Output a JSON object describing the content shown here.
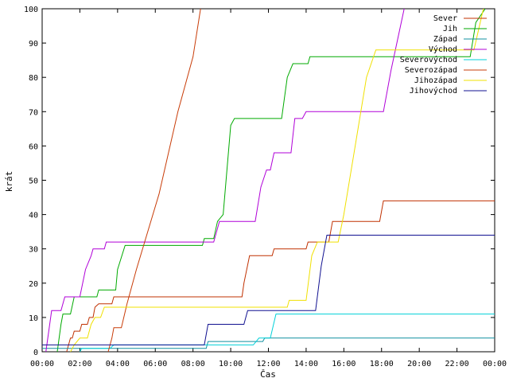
{
  "chart_data": {
    "type": "line",
    "xlabel": "Čas",
    "ylabel": "krát",
    "xlim": [
      0,
      24
    ],
    "ylim": [
      0,
      100
    ],
    "x_ticks": [
      0,
      2,
      4,
      6,
      8,
      10,
      12,
      14,
      16,
      18,
      20,
      22,
      24
    ],
    "x_tick_labels": [
      "00:00",
      "02:00",
      "04:00",
      "06:00",
      "08:00",
      "10:00",
      "12:00",
      "14:00",
      "16:00",
      "18:00",
      "20:00",
      "22:00",
      "00:00"
    ],
    "y_ticks": [
      0,
      10,
      20,
      30,
      40,
      50,
      60,
      70,
      80,
      90,
      100
    ],
    "y_tick_labels": [
      "0",
      "10",
      "20",
      "30",
      "40",
      "50",
      "60",
      "70",
      "80",
      "90",
      "100"
    ],
    "grid": false,
    "step": true,
    "legend_position": "top-right",
    "series": [
      {
        "name": "Sever",
        "color": "#c03000",
        "points": [
          [
            1.3,
            0
          ],
          [
            1.5,
            4
          ],
          [
            1.6,
            4
          ],
          [
            1.7,
            6
          ],
          [
            2.0,
            6
          ],
          [
            2.1,
            8
          ],
          [
            2.4,
            8
          ],
          [
            2.5,
            10
          ],
          [
            2.7,
            10
          ],
          [
            2.8,
            13
          ],
          [
            3.0,
            14
          ],
          [
            3.7,
            14
          ],
          [
            3.8,
            16
          ],
          [
            10.6,
            16
          ],
          [
            10.7,
            20
          ],
          [
            11.0,
            28
          ],
          [
            12.2,
            28
          ],
          [
            12.3,
            30
          ],
          [
            14.0,
            30
          ],
          [
            14.1,
            32
          ],
          [
            15.2,
            32
          ],
          [
            15.4,
            38
          ],
          [
            17.9,
            38
          ],
          [
            18.1,
            44
          ],
          [
            24,
            44
          ]
        ]
      },
      {
        "name": "Jih",
        "color": "#00aa00",
        "points": [
          [
            0.8,
            0
          ],
          [
            1.0,
            8
          ],
          [
            1.1,
            11
          ],
          [
            1.5,
            11
          ],
          [
            1.7,
            16
          ],
          [
            2.9,
            16
          ],
          [
            3.0,
            18
          ],
          [
            3.9,
            18
          ],
          [
            4.0,
            24
          ],
          [
            4.4,
            31
          ],
          [
            8.5,
            31
          ],
          [
            8.6,
            33
          ],
          [
            9.1,
            33
          ],
          [
            9.3,
            38
          ],
          [
            9.6,
            40
          ],
          [
            10.0,
            66
          ],
          [
            10.2,
            68
          ],
          [
            12.7,
            68
          ],
          [
            13.0,
            80
          ],
          [
            13.3,
            84
          ],
          [
            14.1,
            84
          ],
          [
            14.2,
            86
          ],
          [
            22.7,
            86
          ],
          [
            23.0,
            96
          ],
          [
            23.5,
            100
          ]
        ]
      },
      {
        "name": "Západ",
        "color": "#1090a0",
        "points": [
          [
            0,
            1
          ],
          [
            8.7,
            1
          ],
          [
            8.8,
            3
          ],
          [
            11.7,
            3
          ],
          [
            11.8,
            4
          ],
          [
            24,
            4
          ]
        ]
      },
      {
        "name": "Východ",
        "color": "#b000d8",
        "points": [
          [
            0.2,
            0
          ],
          [
            0.4,
            8
          ],
          [
            0.5,
            12
          ],
          [
            1.0,
            12
          ],
          [
            1.2,
            16
          ],
          [
            2.0,
            16
          ],
          [
            2.3,
            24
          ],
          [
            2.6,
            28
          ],
          [
            2.7,
            30
          ],
          [
            3.3,
            30
          ],
          [
            3.4,
            32
          ],
          [
            9.1,
            32
          ],
          [
            9.4,
            38
          ],
          [
            11.3,
            38
          ],
          [
            11.6,
            48
          ],
          [
            11.9,
            53
          ],
          [
            12.1,
            53
          ],
          [
            12.3,
            58
          ],
          [
            13.2,
            58
          ],
          [
            13.4,
            68
          ],
          [
            13.8,
            68
          ],
          [
            14.0,
            70
          ],
          [
            18.1,
            70
          ],
          [
            18.5,
            82
          ],
          [
            19.2,
            100
          ]
        ]
      },
      {
        "name": "Severovýchod",
        "color": "#00d0d8",
        "points": [
          [
            2.0,
            0
          ],
          [
            2.1,
            1
          ],
          [
            3.6,
            1
          ],
          [
            3.8,
            2
          ],
          [
            11.2,
            2
          ],
          [
            11.5,
            4
          ],
          [
            12.1,
            4
          ],
          [
            12.4,
            11
          ],
          [
            24,
            11
          ]
        ]
      },
      {
        "name": "Severozápad",
        "color": "#c83c08",
        "points": [
          [
            3.5,
            0
          ],
          [
            3.7,
            4
          ],
          [
            3.8,
            7
          ],
          [
            4.2,
            7
          ],
          [
            4.5,
            14
          ],
          [
            5.0,
            24
          ],
          [
            6.2,
            46
          ],
          [
            7.2,
            70
          ],
          [
            8.0,
            86
          ],
          [
            8.4,
            100
          ]
        ]
      },
      {
        "name": "Jihozápad",
        "color": "#f0e000",
        "points": [
          [
            1.5,
            0
          ],
          [
            1.7,
            2
          ],
          [
            2.0,
            4
          ],
          [
            2.4,
            4
          ],
          [
            2.6,
            8
          ],
          [
            2.8,
            10
          ],
          [
            3.1,
            10
          ],
          [
            3.3,
            13
          ],
          [
            13.0,
            13
          ],
          [
            13.1,
            15
          ],
          [
            14.0,
            15
          ],
          [
            14.3,
            28
          ],
          [
            14.6,
            32
          ],
          [
            15.7,
            32
          ],
          [
            16.0,
            40
          ],
          [
            16.6,
            60
          ],
          [
            17.2,
            80
          ],
          [
            17.7,
            88
          ],
          [
            22.9,
            88
          ],
          [
            23.4,
            100
          ]
        ]
      },
      {
        "name": "Jihovýchod",
        "color": "#101090",
        "points": [
          [
            0,
            2
          ],
          [
            8.6,
            2
          ],
          [
            8.8,
            8
          ],
          [
            10.7,
            8
          ],
          [
            10.9,
            12
          ],
          [
            14.5,
            12
          ],
          [
            14.8,
            25
          ],
          [
            15.1,
            34
          ],
          [
            24,
            34
          ]
        ]
      }
    ]
  }
}
